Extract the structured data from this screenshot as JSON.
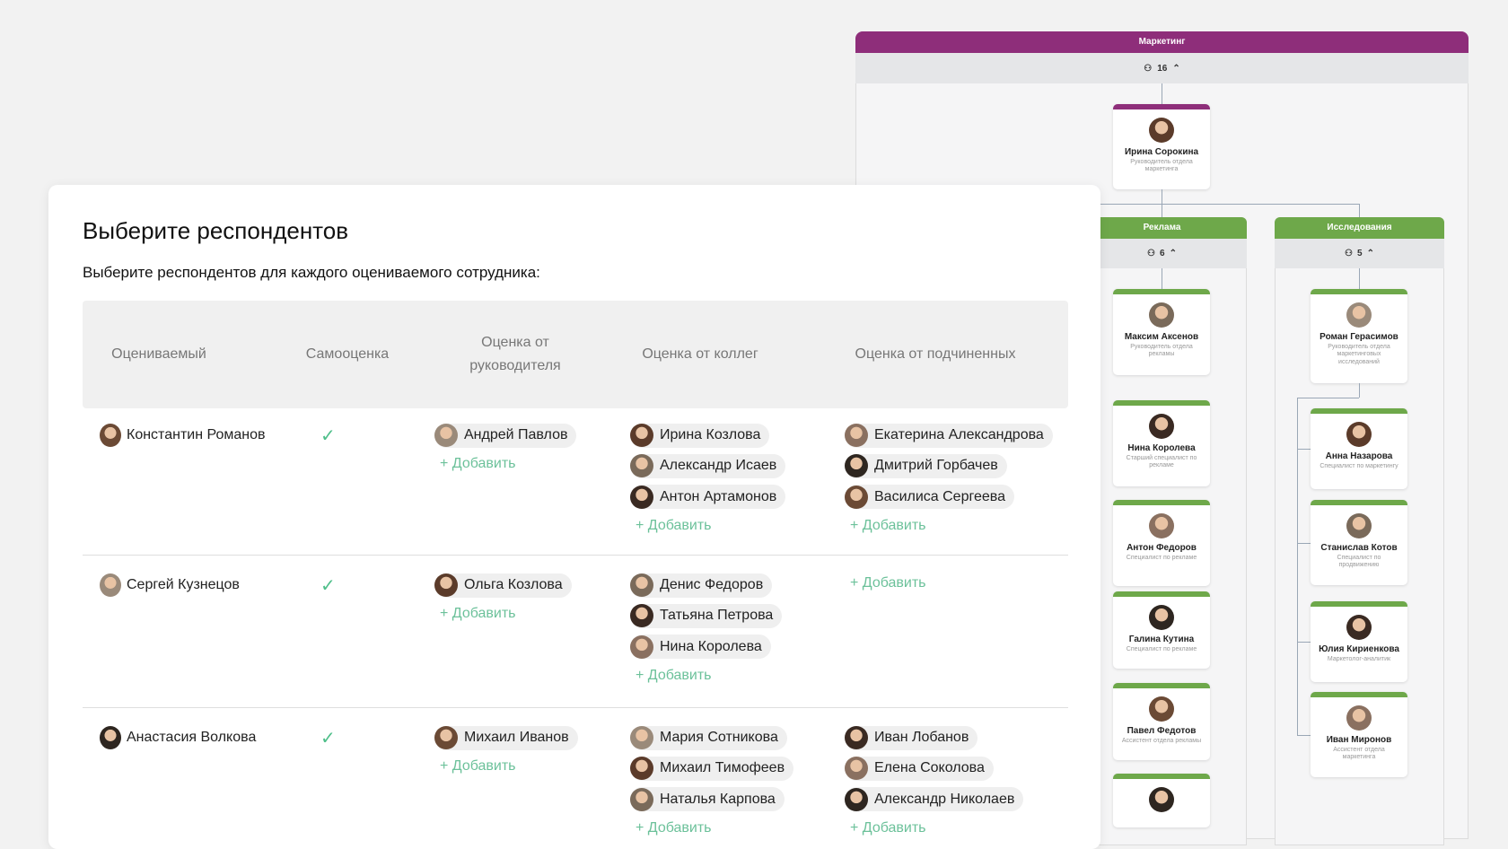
{
  "org": {
    "department": "Маркетинг",
    "count": 16,
    "head": {
      "name": "Ирина Сорокина",
      "role": "Руководитель отдела маркетинга"
    },
    "units": [
      {
        "name": "Реклама",
        "count": 6,
        "people": [
          {
            "name": "Максим Аксенов",
            "role": "Руководитель отдела рекламы"
          },
          {
            "name": "Нина Королева",
            "role": "Старший специалист по рекламе"
          },
          {
            "name": "Антон Федоров",
            "role": "Специалист по рекламе"
          },
          {
            "name": "Галина Кутина",
            "role": "Специалист по рекламе"
          },
          {
            "name": "Павел Федотов",
            "role": "Ассистент отдела рекламы"
          }
        ]
      },
      {
        "name": "Исследования",
        "count": 5,
        "people": [
          {
            "name": "Роман Герасимов",
            "role": "Руководитель отдела маркетинговых исследований"
          },
          {
            "name": "Анна Назарова",
            "role": "Специалист по маркетингу"
          },
          {
            "name": "Станислав Котов",
            "role": "Специалист по продвижению"
          },
          {
            "name": "Юлия Кириенкова",
            "role": "Маркетолог-аналитик"
          },
          {
            "name": "Иван Миронов",
            "role": "Ассистент отдела маркетинга"
          }
        ]
      }
    ]
  },
  "survey": {
    "title": "Выберите респондентов",
    "subtitle": "Выберите респондентов для каждого оцениваемого сотрудника:",
    "columns": [
      "Оцениваемый",
      "Самооценка",
      "Оценка от руководителя",
      "Оценка от коллег",
      "Оценка от подчиненных"
    ],
    "add_label": "Добавить",
    "rows": [
      {
        "name": "Константин Романов",
        "self": true,
        "manager": [
          "Андрей Павлов"
        ],
        "peers": [
          "Ирина Козлова",
          "Александр Исаев",
          "Антон Артамонов"
        ],
        "subordinates": [
          "Екатерина Александрова",
          "Дмитрий Горбачев",
          "Василиса Сергеева"
        ]
      },
      {
        "name": "Сергей Кузнецов",
        "self": true,
        "manager": [
          "Ольга Козлова"
        ],
        "peers": [
          "Денис Федоров",
          "Татьяна Петрова",
          "Нина Королева"
        ],
        "subordinates": []
      },
      {
        "name": "Анастасия Волкова",
        "self": true,
        "manager": [
          "Михаил Иванов"
        ],
        "peers": [
          "Мария Сотникова",
          "Михаил Тимофеев",
          "Наталья Карпова"
        ],
        "subordinates": [
          "Иван Лобанов",
          "Елена Соколова",
          "Александр Николаев"
        ]
      }
    ]
  }
}
